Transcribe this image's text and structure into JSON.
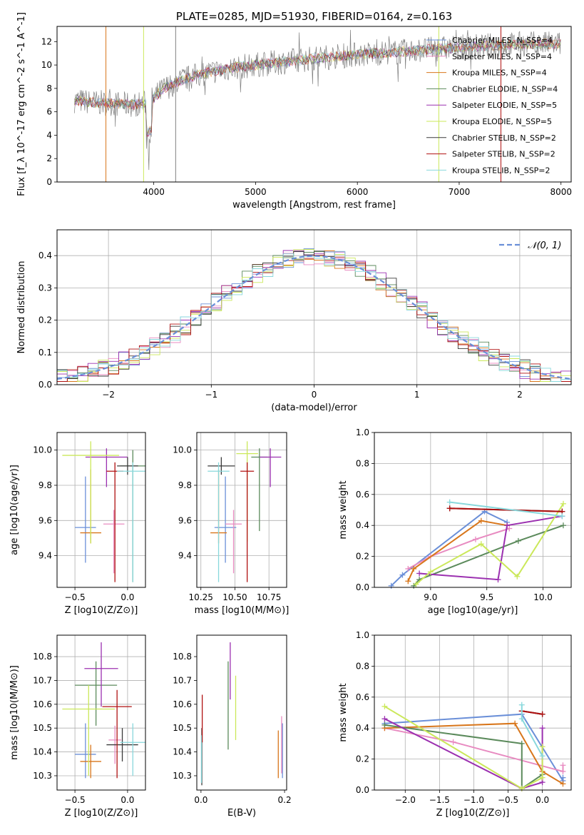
{
  "chart_data": [
    {
      "id": "spectrum",
      "type": "line",
      "title": "PLATE=0285, MJD=51930, FIBERID=0164, z=0.163",
      "xlabel": "wavelength [Angstrom, rest frame]",
      "ylabel": "Flux [f_λ 10^-17 erg cm^-2 s^-1 A^-1]",
      "xlim": [
        3050,
        8100
      ],
      "ylim": [
        0,
        13.3
      ],
      "xticks": [
        4000,
        5000,
        6000,
        7000,
        8000
      ],
      "yticks": [
        0,
        2,
        4,
        6,
        8,
        10,
        12
      ],
      "grid": false,
      "legend_position": "top-right",
      "continuum": {
        "x": [
          3200,
          3400,
          3600,
          3800,
          3950,
          4100,
          4300,
          4500,
          4800,
          5000,
          5300,
          5600,
          6000,
          6400,
          6800,
          7200,
          7600,
          8000
        ],
        "y": [
          7.0,
          6.8,
          6.7,
          6.6,
          6.8,
          8.0,
          8.8,
          9.3,
          9.8,
          10.0,
          10.3,
          10.6,
          10.9,
          11.1,
          11.4,
          11.6,
          11.8,
          11.8
        ]
      },
      "legend": [
        "Chabrier MILES, N_SSP=4",
        "Salpeter MILES, N_SSP=4",
        "Kroupa MILES, N_SSP=4",
        "Chabrier ELODIE, N_SSP=4",
        "Salpeter ELODIE, N_SSP=5",
        "Kroupa ELODIE, N_SSP=5",
        "Chabrier STELIB, N_SSP=2",
        "Salpeter STELIB, N_SSP=2",
        "Kroupa STELIB, N_SSP=2"
      ],
      "legend_colors": [
        "#6a8fd8",
        "#e88bc1",
        "#d8761b",
        "#5b8a5b",
        "#9b30b0",
        "#cbe85a",
        "#3a3a3a",
        "#b01010",
        "#88d8dc"
      ]
    },
    {
      "id": "residuals",
      "type": "histogram",
      "xlabel": "(data-model)/error",
      "ylabel": "Normed distribution",
      "xlim": [
        -2.5,
        2.5
      ],
      "ylim": [
        0,
        0.48
      ],
      "xticks": [
        -2,
        -1,
        0,
        1,
        2
      ],
      "yticks": [
        0.0,
        0.1,
        0.2,
        0.3,
        0.4
      ],
      "grid": true,
      "legend": [
        "𝒩(0, 1)"
      ],
      "legend_position": "top-right",
      "normal_color": "#6a8fd8"
    },
    {
      "id": "age-vs-Z",
      "type": "errorbar",
      "xlabel": "Z [log10(Z/Z⊙)]",
      "ylabel": "age [log10(age/yr)]",
      "xlim": [
        -0.67,
        0.17
      ],
      "ylim": [
        9.22,
        10.1
      ],
      "xticks": [
        -0.5,
        0.0
      ],
      "xticklabels": [
        "−0.5",
        "0.0"
      ],
      "yticks": [
        9.4,
        9.6,
        9.8,
        10.0
      ],
      "grid": true,
      "points": [
        {
          "x": -0.4,
          "y": 9.56,
          "xerr": 0.1,
          "yerr": [
            0.2,
            0.29
          ],
          "color": "#6a8fd8"
        },
        {
          "x": -0.13,
          "y": 9.58,
          "xerr": 0.1,
          "yerr": [
            0.28,
            0.08
          ],
          "color": "#e88bc1"
        },
        {
          "x": -0.35,
          "y": 9.53,
          "xerr": 0.1,
          "yerr": [
            0.06,
            0.36
          ],
          "color": "#d8761b"
        },
        {
          "x": 0.05,
          "y": 9.91,
          "xerr": 0.12,
          "yerr": [
            0.66,
            0.09
          ],
          "color": "#5b8a5b"
        },
        {
          "x": -0.2,
          "y": 9.96,
          "xerr": 0.2,
          "yerr": [
            0.17,
            0.05
          ],
          "color": "#9b30b0"
        },
        {
          "x": -0.35,
          "y": 9.97,
          "xerr": 0.27,
          "yerr": [
            0.5,
            0.08
          ],
          "color": "#cbe85a"
        },
        {
          "x": 0.0,
          "y": 9.91,
          "xerr": 0.1,
          "yerr": [
            0.05,
            0.05
          ],
          "color": "#3a3a3a"
        },
        {
          "x": -0.12,
          "y": 9.88,
          "xerr": 0.08,
          "yerr": [
            0.63,
            0.05
          ],
          "color": "#b01010"
        },
        {
          "x": 0.05,
          "y": 9.88,
          "xerr": 0.15,
          "yerr": [
            0.63,
            0.05
          ],
          "color": "#88d8dc"
        }
      ]
    },
    {
      "id": "age-vs-mass",
      "type": "errorbar",
      "xlabel": "mass [log10(M/M⊙)]",
      "xlim": [
        10.22,
        10.88
      ],
      "ylim": [
        9.22,
        10.1
      ],
      "xticks": [
        10.25,
        10.5,
        10.75
      ],
      "yticks": [
        9.4,
        9.6,
        9.8,
        10.0
      ],
      "grid": true,
      "points": [
        {
          "x": 10.43,
          "y": 9.56,
          "xerr": 0.08,
          "yerr": [
            0.2,
            0.29
          ],
          "color": "#6a8fd8"
        },
        {
          "x": 10.49,
          "y": 9.58,
          "xerr": 0.06,
          "yerr": [
            0.28,
            0.08
          ],
          "color": "#e88bc1"
        },
        {
          "x": 10.38,
          "y": 9.53,
          "xerr": 0.06,
          "yerr": [
            0.06,
            0.36
          ],
          "color": "#d8761b"
        },
        {
          "x": 10.68,
          "y": 9.96,
          "xerr": 0.06,
          "yerr": [
            0.42,
            0.05
          ],
          "color": "#5b8a5b"
        },
        {
          "x": 10.76,
          "y": 9.96,
          "xerr": 0.08,
          "yerr": [
            0.17,
            0.05
          ],
          "color": "#9b30b0"
        },
        {
          "x": 10.59,
          "y": 9.98,
          "xerr": 0.08,
          "yerr": [
            0.5,
            0.07
          ],
          "color": "#cbe85a"
        },
        {
          "x": 10.4,
          "y": 9.91,
          "xerr": 0.1,
          "yerr": [
            0.05,
            0.05
          ],
          "color": "#3a3a3a"
        },
        {
          "x": 10.59,
          "y": 9.88,
          "xerr": 0.05,
          "yerr": [
            0.63,
            0.05
          ],
          "color": "#b01010"
        },
        {
          "x": 10.38,
          "y": 9.88,
          "xerr": 0.08,
          "yerr": [
            0.63,
            0.05
          ],
          "color": "#88d8dc"
        }
      ]
    },
    {
      "id": "weight-vs-age",
      "type": "line",
      "xlabel": "age [log10(age/yr)]",
      "ylabel": "mass weight",
      "xlim": [
        8.5,
        10.25
      ],
      "ylim": [
        0,
        1.0
      ],
      "xticks": [
        9.0,
        9.5,
        10.0
      ],
      "yticks": [
        0.0,
        0.2,
        0.4,
        0.6,
        0.8,
        1.0
      ],
      "grid": true,
      "series": [
        {
          "x": [
            8.65,
            8.75,
            9.48,
            9.68
          ],
          "y": [
            0.01,
            0.08,
            0.49,
            0.42
          ],
          "color": "#6a8fd8"
        },
        {
          "x": [
            8.8,
            9.0,
            9.4,
            9.7
          ],
          "y": [
            0.12,
            0.2,
            0.31,
            0.38
          ],
          "color": "#e88bc1"
        },
        {
          "x": [
            8.8,
            8.85,
            9.45,
            9.68
          ],
          "y": [
            0.04,
            0.12,
            0.43,
            0.4
          ],
          "color": "#d8761b"
        },
        {
          "x": [
            8.85,
            8.9,
            9.78,
            10.18
          ],
          "y": [
            0.01,
            0.05,
            0.3,
            0.4
          ],
          "color": "#5b8a5b"
        },
        {
          "x": [
            8.9,
            9.6,
            9.68,
            10.17
          ],
          "y": [
            0.09,
            0.05,
            0.4,
            0.46
          ],
          "color": "#9b30b0"
        },
        {
          "x": [
            8.87,
            9.0,
            9.45,
            9.77,
            10.18
          ],
          "y": [
            0.02,
            0.1,
            0.28,
            0.07,
            0.54
          ],
          "color": "#cbe85a"
        },
        {
          "x": [
            9.17,
            10.17
          ],
          "y": [
            0.51,
            0.49
          ],
          "color": "#3a3a3a"
        },
        {
          "x": [
            9.17,
            10.17
          ],
          "y": [
            0.51,
            0.49
          ],
          "color": "#b01010"
        },
        {
          "x": [
            9.17,
            10.17
          ],
          "y": [
            0.55,
            0.46
          ],
          "color": "#88d8dc"
        }
      ]
    },
    {
      "id": "mass-vs-Z",
      "type": "errorbar",
      "xlabel": "Z [log10(Z/Z⊙)]",
      "ylabel": "mass [log10(M/M⊙)]",
      "xlim": [
        -0.67,
        0.17
      ],
      "ylim": [
        10.24,
        10.89
      ],
      "xticks": [
        -0.5,
        0.0
      ],
      "xticklabels": [
        "−0.5",
        "0.0"
      ],
      "yticks": [
        10.3,
        10.4,
        10.5,
        10.6,
        10.7,
        10.8
      ],
      "grid": true,
      "points": [
        {
          "x": -0.4,
          "y": 10.39,
          "xerr": 0.1,
          "yerr": [
            0.1,
            0.13
          ],
          "color": "#6a8fd8"
        },
        {
          "x": -0.12,
          "y": 10.45,
          "xerr": 0.06,
          "yerr": [
            0.1,
            0.06
          ],
          "color": "#e88bc1"
        },
        {
          "x": -0.35,
          "y": 10.36,
          "xerr": 0.1,
          "yerr": [
            0.07,
            0.07
          ],
          "color": "#d8761b"
        },
        {
          "x": -0.3,
          "y": 10.68,
          "xerr": 0.2,
          "yerr": [
            0.17,
            0.1
          ],
          "color": "#5b8a5b"
        },
        {
          "x": -0.25,
          "y": 10.75,
          "xerr": 0.16,
          "yerr": [
            0.16,
            0.11
          ],
          "color": "#9b30b0"
        },
        {
          "x": -0.37,
          "y": 10.58,
          "xerr": 0.25,
          "yerr": [
            0.28,
            0.1
          ],
          "color": "#cbe85a"
        },
        {
          "x": -0.05,
          "y": 10.43,
          "xerr": 0.15,
          "yerr": [
            0.07,
            0.07
          ],
          "color": "#3a3a3a"
        },
        {
          "x": -0.1,
          "y": 10.59,
          "xerr": 0.14,
          "yerr": [
            0.3,
            0.07
          ],
          "color": "#b01010"
        },
        {
          "x": 0.05,
          "y": 10.44,
          "xerr": 0.12,
          "yerr": [
            0.14,
            0.08
          ],
          "color": "#88d8dc"
        }
      ]
    },
    {
      "id": "mass-vs-EBV",
      "type": "errorbar",
      "xlabel": "E(B-V)",
      "xlim": [
        -0.01,
        0.205
      ],
      "ylim": [
        10.24,
        10.89
      ],
      "xticks": [
        0.0,
        0.2
      ],
      "yticks": [
        10.3,
        10.4,
        10.5,
        10.6,
        10.7,
        10.8
      ],
      "grid": false,
      "points": [
        {
          "x": 0.195,
          "y": 10.4,
          "yerr": [
            0.11,
            0.12
          ],
          "color": "#6a8fd8"
        },
        {
          "x": 0.193,
          "y": 10.43,
          "yerr": [
            0.12,
            0.12
          ],
          "color": "#e88bc1"
        },
        {
          "x": 0.185,
          "y": 10.39,
          "yerr": [
            0.1,
            0.1
          ],
          "color": "#d8761b"
        },
        {
          "x": 0.065,
          "y": 10.6,
          "yerr": [
            0.19,
            0.18
          ],
          "color": "#5b8a5b"
        },
        {
          "x": 0.07,
          "y": 10.75,
          "yerr": [
            0.13,
            0.11
          ],
          "color": "#9b30b0"
        },
        {
          "x": 0.083,
          "y": 10.58,
          "yerr": [
            0.13,
            0.14
          ],
          "color": "#cbe85a"
        },
        {
          "x": 0.002,
          "y": 10.38,
          "yerr": [
            0.12,
            0.12
          ],
          "color": "#3a3a3a"
        },
        {
          "x": 0.003,
          "y": 10.54,
          "yerr": [
            0.1,
            0.1
          ],
          "color": "#b01010"
        },
        {
          "x": 0.001,
          "y": 10.37,
          "yerr": [
            0.1,
            0.1
          ],
          "color": "#88d8dc"
        }
      ]
    },
    {
      "id": "weight-vs-Z",
      "type": "line",
      "xlabel": "Z [log10(Z/Z⊙)]",
      "ylabel": "mass weight",
      "xlim": [
        -2.45,
        0.42
      ],
      "ylim": [
        0,
        1.0
      ],
      "xticks": [
        -2.0,
        -1.5,
        -1.0,
        -0.5,
        0.0
      ],
      "xticklabels": [
        "−2.0",
        "−1.5",
        "−1.0",
        "−0.5",
        "0.0"
      ],
      "yticks": [
        0.0,
        0.2,
        0.4,
        0.6,
        0.8,
        1.0
      ],
      "grid": true,
      "series": [
        {
          "x": [
            -2.3,
            -0.3,
            0.3,
            0.3
          ],
          "y": [
            0.43,
            0.49,
            0.06,
            0.08
          ],
          "color": "#6a8fd8"
        },
        {
          "x": [
            -2.3,
            -1.3,
            0.3,
            0.3
          ],
          "y": [
            0.4,
            0.31,
            0.12,
            0.16
          ],
          "color": "#e88bc1"
        },
        {
          "x": [
            -2.3,
            -0.4,
            0.0,
            0.3
          ],
          "y": [
            0.4,
            0.43,
            0.12,
            0.04
          ],
          "color": "#d8761b"
        },
        {
          "x": [
            -2.3,
            -0.3,
            -0.3,
            0.0
          ],
          "y": [
            0.42,
            0.3,
            0.01,
            0.1
          ],
          "color": "#5b8a5b"
        },
        {
          "x": [
            -2.3,
            -0.3,
            0.0,
            0.0
          ],
          "y": [
            0.46,
            0.01,
            0.05,
            0.4
          ],
          "color": "#9b30b0"
        },
        {
          "x": [
            -2.3,
            -0.3,
            0.0,
            0.0
          ],
          "y": [
            0.54,
            0.01,
            0.08,
            0.28
          ],
          "color": "#cbe85a"
        },
        {
          "x": [
            -0.3,
            0.0
          ],
          "y": [
            0.51,
            0.49
          ],
          "color": "#3a3a3a"
        },
        {
          "x": [
            -0.3,
            0.0
          ],
          "y": [
            0.51,
            0.49
          ],
          "color": "#b01010"
        },
        {
          "x": [
            -0.3,
            -0.3,
            0.0
          ],
          "y": [
            0.55,
            0.46,
            0.22
          ],
          "color": "#88d8dc"
        }
      ]
    }
  ]
}
